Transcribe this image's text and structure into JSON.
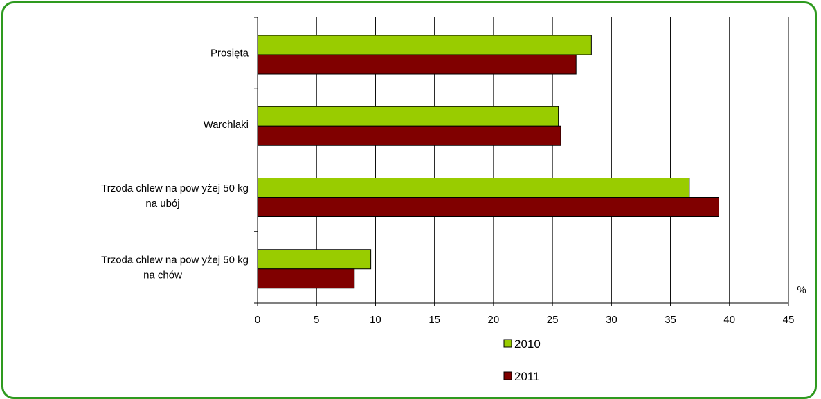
{
  "chart_data": {
    "type": "bar",
    "orientation": "horizontal",
    "categories": [
      "Prosięta",
      "Warchlaki",
      "Trzoda chlew na pow yżej 50 kg na ubój",
      "Trzoda chlew na pow yżej 50 kg na chów"
    ],
    "category_label_lines": [
      [
        "Prosięta"
      ],
      [
        "Warchlaki"
      ],
      [
        "Trzoda chlew na pow yżej 50 kg",
        "na ubój"
      ],
      [
        "Trzoda chlew na pow yżej 50 kg",
        "na chów"
      ]
    ],
    "series": [
      {
        "name": "2010",
        "color": "#99cc00",
        "values": [
          28.3,
          25.5,
          36.6,
          9.6
        ]
      },
      {
        "name": "2011",
        "color": "#800000",
        "values": [
          27.0,
          25.7,
          39.1,
          8.2
        ]
      }
    ],
    "xlim": [
      0,
      45
    ],
    "xticks": [
      0,
      5,
      10,
      15,
      20,
      25,
      30,
      35,
      40,
      45
    ],
    "x_unit": "%",
    "grid": "vertical",
    "legend": "bottom",
    "frame_color": "#2e9a1f"
  }
}
